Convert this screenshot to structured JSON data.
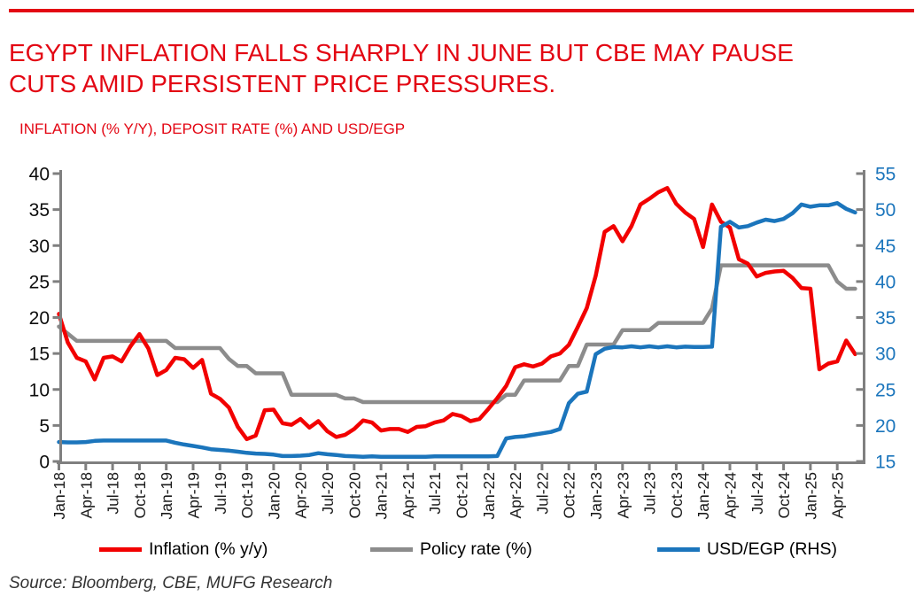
{
  "header": {
    "title_line1": "EGYPT INFLATION FALLS SHARPLY IN JUNE BUT CBE MAY PAUSE",
    "title_line2": "CUTS AMID PERSISTENT PRICE PRESSURES.",
    "subtitle": "INFLATION (% Y/Y), DEPOSIT RATE (%) AND USD/EGP"
  },
  "legend": [
    {
      "label": "Inflation (% y/y)",
      "color": "#f20000"
    },
    {
      "label": "Policy rate (%)",
      "color": "#8c8c8c"
    },
    {
      "label": "USD/EGP (RHS)",
      "color": "#1b75bc"
    }
  ],
  "source": "Source: Bloomberg, CBE, MUFG Research",
  "colors": {
    "brand_red": "#e30613",
    "axis_gray": "#7f7f7f",
    "right_axis_blue": "#1b75bc"
  },
  "chart_data": {
    "type": "line",
    "title": "EGYPT INFLATION FALLS SHARPLY IN JUNE BUT CBE MAY PAUSE CUTS AMID PERSISTENT PRICE PRESSURES.",
    "subtitle": "INFLATION (% Y/Y), DEPOSIT RATE (%) AND USD/EGP",
    "grid": false,
    "legend_position": "bottom",
    "left_axis": {
      "min": 0,
      "max": 40,
      "step": 5,
      "ticks": [
        0,
        5,
        10,
        15,
        20,
        25,
        30,
        35,
        40
      ]
    },
    "right_axis": {
      "min": 15,
      "max": 55,
      "step": 5,
      "ticks": [
        15,
        20,
        25,
        30,
        35,
        40,
        45,
        50,
        55
      ]
    },
    "x_tick_labels": [
      "Jan-18",
      "Apr-18",
      "Jul-18",
      "Oct-18",
      "Jan-19",
      "Apr-19",
      "Jul-19",
      "Oct-19",
      "Jan-20",
      "Apr-20",
      "Jul-20",
      "Oct-20",
      "Jan-21",
      "Apr-21",
      "Jul-21",
      "Oct-21",
      "Jan-22",
      "Apr-22",
      "Jul-22",
      "Oct-22",
      "Jan-23",
      "Apr-23",
      "Jul-23",
      "Oct-23",
      "Jan-24",
      "Apr-24",
      "Jul-24",
      "Oct-24",
      "Jan-25",
      "Apr-25"
    ],
    "categories": [
      "Jan-18",
      "Feb-18",
      "Mar-18",
      "Apr-18",
      "May-18",
      "Jun-18",
      "Jul-18",
      "Aug-18",
      "Sep-18",
      "Oct-18",
      "Nov-18",
      "Dec-18",
      "Jan-19",
      "Feb-19",
      "Mar-19",
      "Apr-19",
      "May-19",
      "Jun-19",
      "Jul-19",
      "Aug-19",
      "Sep-19",
      "Oct-19",
      "Nov-19",
      "Dec-19",
      "Jan-20",
      "Feb-20",
      "Mar-20",
      "Apr-20",
      "May-20",
      "Jun-20",
      "Jul-20",
      "Aug-20",
      "Sep-20",
      "Oct-20",
      "Nov-20",
      "Dec-20",
      "Jan-21",
      "Feb-21",
      "Mar-21",
      "Apr-21",
      "May-21",
      "Jun-21",
      "Jul-21",
      "Aug-21",
      "Sep-21",
      "Oct-21",
      "Nov-21",
      "Dec-21",
      "Jan-22",
      "Feb-22",
      "Mar-22",
      "Apr-22",
      "May-22",
      "Jun-22",
      "Jul-22",
      "Aug-22",
      "Sep-22",
      "Oct-22",
      "Nov-22",
      "Dec-22",
      "Jan-23",
      "Feb-23",
      "Mar-23",
      "Apr-23",
      "May-23",
      "Jun-23",
      "Jul-23",
      "Aug-23",
      "Sep-23",
      "Oct-23",
      "Nov-23",
      "Dec-23",
      "Jan-24",
      "Feb-24",
      "Mar-24",
      "Apr-24",
      "May-24",
      "Jun-24",
      "Jul-24",
      "Aug-24",
      "Sep-24",
      "Oct-24",
      "Nov-24",
      "Dec-24",
      "Jan-25",
      "Feb-25",
      "Mar-25",
      "Apr-25",
      "May-25",
      "Jun-25"
    ],
    "series": [
      {
        "name": "Inflation (% y/y)",
        "axis": "left",
        "color": "#f20000",
        "values": [
          20.5,
          16.5,
          14.4,
          13.9,
          11.4,
          14.4,
          14.6,
          13.9,
          16.0,
          17.7,
          15.7,
          12.0,
          12.7,
          14.4,
          14.2,
          13.0,
          14.1,
          9.4,
          8.7,
          7.5,
          4.8,
          3.1,
          3.6,
          7.1,
          7.2,
          5.3,
          5.1,
          5.9,
          4.7,
          5.6,
          4.2,
          3.4,
          3.7,
          4.5,
          5.7,
          5.4,
          4.3,
          4.5,
          4.5,
          4.1,
          4.8,
          4.9,
          5.4,
          5.7,
          6.6,
          6.3,
          5.6,
          5.9,
          7.3,
          8.8,
          10.5,
          13.1,
          13.5,
          13.2,
          13.6,
          14.6,
          15.0,
          16.2,
          18.7,
          21.3,
          25.8,
          31.9,
          32.7,
          30.6,
          32.7,
          35.7,
          36.5,
          37.4,
          38.0,
          35.8,
          34.6,
          33.7,
          29.8,
          35.7,
          33.3,
          32.5,
          28.1,
          27.5,
          25.7,
          26.2,
          26.4,
          26.5,
          25.5,
          24.1,
          24.0,
          12.8,
          13.6,
          13.9,
          16.8,
          14.9
        ]
      },
      {
        "name": "Policy rate (%)",
        "axis": "left",
        "color": "#8c8c8c",
        "values": [
          18.75,
          17.75,
          16.75,
          16.75,
          16.75,
          16.75,
          16.75,
          16.75,
          16.75,
          16.75,
          16.75,
          16.75,
          16.75,
          15.75,
          15.75,
          15.75,
          15.75,
          15.75,
          15.75,
          14.25,
          13.25,
          13.25,
          12.25,
          12.25,
          12.25,
          12.25,
          9.25,
          9.25,
          9.25,
          9.25,
          9.25,
          9.25,
          8.75,
          8.75,
          8.25,
          8.25,
          8.25,
          8.25,
          8.25,
          8.25,
          8.25,
          8.25,
          8.25,
          8.25,
          8.25,
          8.25,
          8.25,
          8.25,
          8.25,
          8.25,
          9.25,
          9.25,
          11.25,
          11.25,
          11.25,
          11.25,
          11.25,
          13.25,
          13.25,
          16.25,
          16.25,
          16.25,
          16.25,
          18.25,
          18.25,
          18.25,
          18.25,
          19.25,
          19.25,
          19.25,
          19.25,
          19.25,
          19.25,
          21.25,
          27.25,
          27.25,
          27.25,
          27.25,
          27.25,
          27.25,
          27.25,
          27.25,
          27.25,
          27.25,
          27.25,
          27.25,
          27.25,
          25.0,
          24.0,
          24.0
        ]
      },
      {
        "name": "USD/EGP (RHS)",
        "axis": "right",
        "color": "#1b75bc",
        "values": [
          17.7,
          17.65,
          17.65,
          17.7,
          17.85,
          17.9,
          17.9,
          17.9,
          17.9,
          17.9,
          17.9,
          17.9,
          17.9,
          17.6,
          17.35,
          17.15,
          16.95,
          16.7,
          16.6,
          16.5,
          16.35,
          16.2,
          16.1,
          16.05,
          15.95,
          15.75,
          15.75,
          15.8,
          15.9,
          16.15,
          16.0,
          15.9,
          15.75,
          15.7,
          15.65,
          15.7,
          15.65,
          15.65,
          15.65,
          15.65,
          15.65,
          15.65,
          15.7,
          15.7,
          15.7,
          15.7,
          15.7,
          15.7,
          15.7,
          15.75,
          18.2,
          18.4,
          18.5,
          18.7,
          18.9,
          19.1,
          19.5,
          23.1,
          24.4,
          24.7,
          29.9,
          30.65,
          30.9,
          30.85,
          31.0,
          30.85,
          31.0,
          30.85,
          31.0,
          30.85,
          30.95,
          30.9,
          30.9,
          30.95,
          47.6,
          48.3,
          47.5,
          47.7,
          48.2,
          48.6,
          48.4,
          48.7,
          49.5,
          50.7,
          50.4,
          50.6,
          50.6,
          50.9,
          50.1,
          49.6
        ]
      }
    ]
  }
}
